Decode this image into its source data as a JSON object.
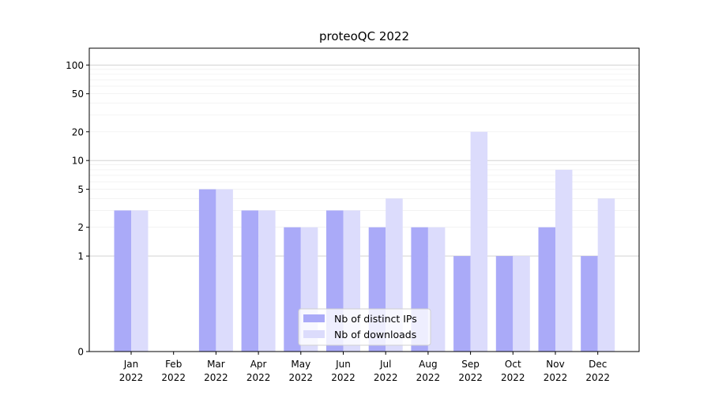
{
  "chart_data": {
    "type": "bar",
    "title": "proteoQC 2022",
    "xlabel": "",
    "ylabel": "",
    "y_scale": "symlog",
    "ylim": [
      0,
      150
    ],
    "y_ticks": [
      0,
      1,
      2,
      5,
      10,
      20,
      50,
      100
    ],
    "grid": "horizontal",
    "legend_position": "bottom-center",
    "categories": [
      [
        "Jan",
        "2022"
      ],
      [
        "Feb",
        "2022"
      ],
      [
        "Mar",
        "2022"
      ],
      [
        "Apr",
        "2022"
      ],
      [
        "May",
        "2022"
      ],
      [
        "Jun",
        "2022"
      ],
      [
        "Jul",
        "2022"
      ],
      [
        "Aug",
        "2022"
      ],
      [
        "Sep",
        "2022"
      ],
      [
        "Oct",
        "2022"
      ],
      [
        "Nov",
        "2022"
      ],
      [
        "Dec",
        "2022"
      ]
    ],
    "series": [
      {
        "name": "Nb of distinct IPs",
        "color": "#aaaaf8",
        "values": [
          3,
          0,
          5,
          3,
          2,
          3,
          2,
          2,
          1,
          1,
          2,
          1
        ]
      },
      {
        "name": "Nb of downloads",
        "color": "#dcdcfc",
        "values": [
          3,
          0,
          5,
          3,
          2,
          3,
          4,
          2,
          20,
          1,
          8,
          4
        ]
      }
    ]
  }
}
